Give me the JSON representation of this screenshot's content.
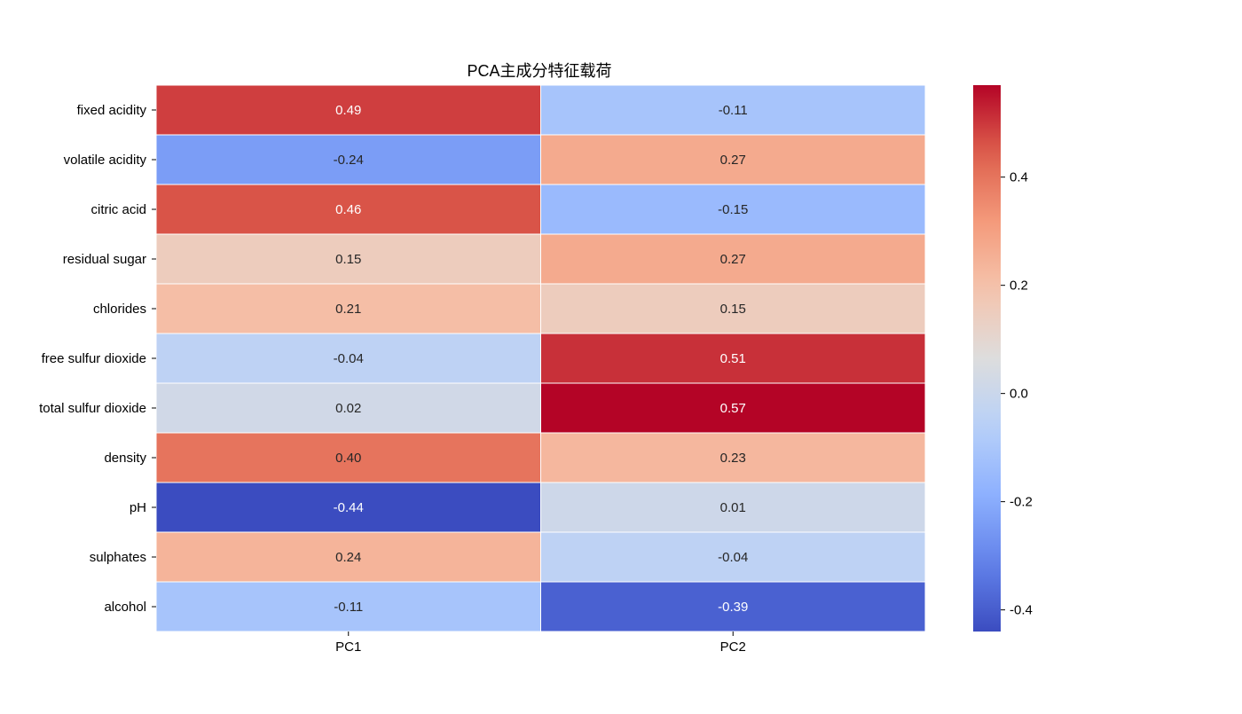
{
  "chart_data": {
    "type": "heatmap",
    "title": "PCA主成分特征载荷",
    "xlabel": "",
    "ylabel": "",
    "columns": [
      "PC1",
      "PC2"
    ],
    "rows": [
      "fixed acidity",
      "volatile acidity",
      "citric acid",
      "residual sugar",
      "chlorides",
      "free sulfur dioxide",
      "total sulfur dioxide",
      "density",
      "pH",
      "sulphates",
      "alcohol"
    ],
    "values": [
      [
        0.49,
        -0.11
      ],
      [
        -0.24,
        0.27
      ],
      [
        0.46,
        -0.15
      ],
      [
        0.15,
        0.27
      ],
      [
        0.21,
        0.15
      ],
      [
        -0.04,
        0.51
      ],
      [
        0.02,
        0.57
      ],
      [
        0.4,
        0.23
      ],
      [
        -0.44,
        0.01
      ],
      [
        0.24,
        -0.04
      ],
      [
        -0.11,
        -0.39
      ]
    ],
    "value_format": "0.00",
    "colormap": "coolwarm",
    "vmin": -0.44,
    "vmax": 0.57,
    "colorbar": {
      "ticks": [
        -0.4,
        -0.2,
        0.0,
        0.2,
        0.4
      ],
      "tick_labels": [
        "-0.4",
        "-0.2",
        "0.0",
        "0.2",
        "0.4"
      ]
    },
    "cell_separator_color": "#ffffff"
  }
}
